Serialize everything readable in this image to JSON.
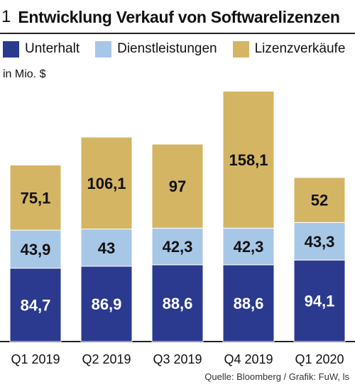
{
  "figure_number": "1",
  "colors": {
    "unterhalt": "#2b3a8f",
    "dienstleistungen": "#a7c7e7",
    "lizenzverkaeufe": "#d4b564"
  },
  "unit_label": "in Mio. $",
  "source": "Quelle: Bloomberg / Grafik: FuW, ls",
  "chart_data": {
    "type": "bar",
    "stacked": true,
    "title": "Entwicklung Verkauf von Softwarelizenzen",
    "ylabel": "in Mio. $",
    "categories": [
      "Q1 2019",
      "Q2 2019",
      "Q3 2019",
      "Q4 2019",
      "Q1 2020"
    ],
    "series": [
      {
        "name": "Unterhalt",
        "values": [
          84.7,
          86.9,
          88.6,
          88.6,
          94.1
        ],
        "color": "#2b3a8f"
      },
      {
        "name": "Dienstleistungen",
        "values": [
          43.9,
          43,
          42.3,
          42.3,
          43.3
        ],
        "color": "#a7c7e7"
      },
      {
        "name": "Lizenzverkäufe",
        "values": [
          75.1,
          106.1,
          97,
          158.1,
          52
        ],
        "color": "#d4b564"
      }
    ],
    "data_labels": [
      [
        "84,7",
        "86,9",
        "88,6",
        "88,6",
        "94,1"
      ],
      [
        "43,9",
        "43",
        "42,3",
        "42,3",
        "43,3"
      ],
      [
        "75,1",
        "106,1",
        "97",
        "158,1",
        "52"
      ]
    ],
    "ylim": [
      0,
      300
    ],
    "grid": false,
    "legend_position": "top"
  }
}
